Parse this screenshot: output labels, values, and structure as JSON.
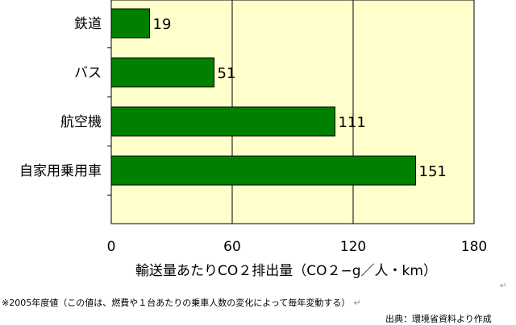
{
  "chart_data": {
    "type": "bar",
    "orientation": "horizontal",
    "categories": [
      "鉄道",
      "バス",
      "航空機",
      "自家用乗用車"
    ],
    "values": [
      19,
      51,
      111,
      151
    ],
    "xlabel": "輸送量あたりCO２排出量（CO２−g／人・km）",
    "xlim": [
      0,
      180
    ],
    "xticks": [
      0,
      60,
      120,
      180
    ],
    "grid": true,
    "legend": "none"
  },
  "colors": {
    "plot_background": "#ffffcc",
    "bar_fill": "#008000",
    "bar_stroke": "#000000"
  },
  "footnote": "※2005年度値（この値は、燃費や１台あたりの乗車人数の変化によって毎年変動する）",
  "return_mark": "↵",
  "source": "出典：環境省資料より作成"
}
